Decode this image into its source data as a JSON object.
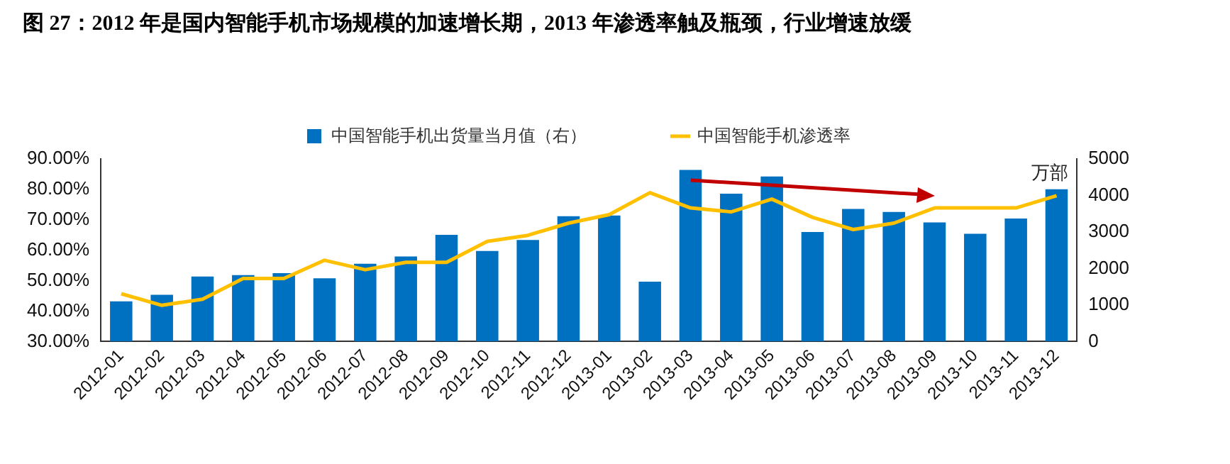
{
  "chart_data": {
    "type": "bar",
    "title": "图 27：2012 年是国内智能手机市场规模的加速增长期，2013 年渗透率触及瓶颈，行业增速放缓",
    "categories": [
      "2012-01",
      "2012-02",
      "2012-03",
      "2012-04",
      "2012-05",
      "2012-06",
      "2012-07",
      "2012-08",
      "2012-09",
      "2012-10",
      "2012-11",
      "2012-12",
      "2013-01",
      "2013-02",
      "2013-03",
      "2013-04",
      "2013-05",
      "2013-06",
      "2013-07",
      "2013-08",
      "2013-09",
      "2013-10",
      "2013-11",
      "2013-12"
    ],
    "series": [
      {
        "name": "中国智能手机出货量当月值（右）",
        "axis": "y2",
        "color": "#0070c0",
        "values": [
          1100,
          1280,
          1780,
          1820,
          1870,
          1730,
          2130,
          2330,
          2920,
          2480,
          2780,
          3430,
          3450,
          1640,
          4700,
          4050,
          4520,
          3000,
          3630,
          3550,
          3260,
          2950,
          3370,
          4170
        ]
      },
      {
        "name": "中国智能手机渗透率",
        "type": "line",
        "axis": "y",
        "color": "#ffc000",
        "values": [
          45.7,
          41.9,
          43.9,
          50.7,
          50.7,
          56.7,
          53.6,
          56.0,
          56.0,
          62.9,
          64.9,
          68.9,
          71.7,
          78.9,
          73.9,
          72.6,
          76.8,
          70.8,
          66.8,
          68.9,
          73.9,
          73.9,
          73.9,
          77.9
        ]
      }
    ],
    "ylim": [
      30,
      90
    ],
    "yticks": [
      {
        "value": 30,
        "label": "30.00%"
      },
      {
        "value": 40,
        "label": "40.00%"
      },
      {
        "value": 50,
        "label": "50.00%"
      },
      {
        "value": 60,
        "label": "60.00%"
      },
      {
        "value": 70,
        "label": "70.00%"
      },
      {
        "value": 80,
        "label": "80.00%"
      },
      {
        "value": 90,
        "label": "90.00%"
      }
    ],
    "y2lim": [
      0,
      5000
    ],
    "y2ticks": [
      0,
      1000,
      2000,
      3000,
      4000,
      5000
    ],
    "y2label": "万部",
    "legend": "top",
    "grid": false,
    "marker": "none",
    "line_style": "solid"
  }
}
